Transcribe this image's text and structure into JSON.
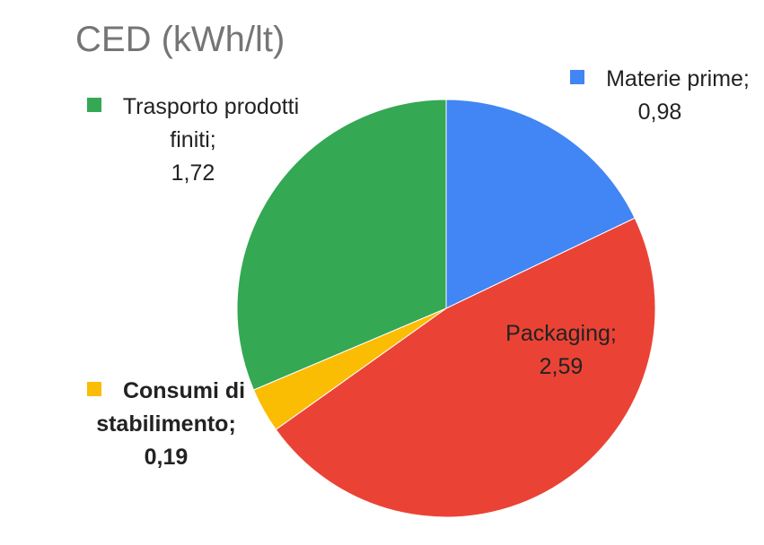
{
  "chart_data": {
    "type": "pie",
    "title": "CED (kWh/lt)",
    "categories": [
      "Materie prime;",
      "Packaging;",
      "Consumi di stabilimento;",
      "Trasporto prodotti finiti;"
    ],
    "values": [
      0.98,
      2.59,
      0.19,
      1.72
    ],
    "value_labels": [
      "0,98",
      "2,59",
      "0,19",
      "1,72"
    ],
    "colors": [
      "#4285f4",
      "#ea4335",
      "#fbbc04",
      "#34a853"
    ]
  }
}
